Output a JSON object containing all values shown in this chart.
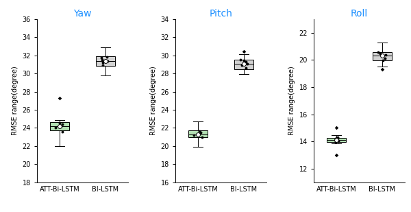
{
  "panels": [
    {
      "title": "Yaw",
      "ylim": [
        18,
        36
      ],
      "yticks": [
        18,
        20,
        22,
        24,
        26,
        28,
        30,
        32,
        34,
        36
      ],
      "att_bilstm": {
        "whislo": 22.0,
        "q1": 23.7,
        "med": 24.2,
        "q3": 24.65,
        "whishi": 24.9,
        "fliers": [
          27.3
        ],
        "scatter_pts": [
          23.6,
          24.0,
          24.2,
          24.4,
          24.55
        ],
        "mean": 24.2,
        "color": "#b2dfb2"
      },
      "bilstm": {
        "whislo": 29.8,
        "q1": 30.85,
        "med": 31.35,
        "q3": 31.9,
        "whishi": 32.9,
        "fliers": [],
        "scatter_pts": [
          30.9,
          31.2,
          31.35,
          31.5,
          31.75,
          31.85
        ],
        "mean": 31.4,
        "color": "#d3d3d3"
      }
    },
    {
      "title": "Pitch",
      "ylim": [
        16,
        34
      ],
      "yticks": [
        16,
        18,
        20,
        22,
        24,
        26,
        28,
        30,
        32,
        34
      ],
      "att_bilstm": {
        "whislo": 19.9,
        "q1": 21.0,
        "med": 21.3,
        "q3": 21.7,
        "whishi": 22.7,
        "fliers": [],
        "scatter_pts": [
          21.0,
          21.2,
          21.3,
          21.5,
          21.65
        ],
        "mean": 21.3,
        "color": "#b2dfb2"
      },
      "bilstm": {
        "whislo": 27.9,
        "q1": 28.5,
        "med": 29.1,
        "q3": 29.5,
        "whishi": 30.1,
        "fliers": [
          30.4
        ],
        "scatter_pts": [
          28.6,
          28.9,
          29.1,
          29.3,
          29.45,
          29.5
        ],
        "mean": 29.1,
        "color": "#d3d3d3"
      }
    },
    {
      "title": "Roll",
      "ylim": [
        11,
        23
      ],
      "yticks": [
        12,
        14,
        16,
        18,
        20,
        22
      ],
      "att_bilstm": {
        "whislo": 13.85,
        "q1": 13.95,
        "med": 14.1,
        "q3": 14.25,
        "whishi": 14.45,
        "fliers": [
          15.0,
          13.0
        ],
        "scatter_pts": [
          13.95,
          14.0,
          14.1,
          14.15,
          14.2,
          14.25,
          14.3
        ],
        "mean": 14.1,
        "color": "#b2dfb2"
      },
      "bilstm": {
        "whislo": 19.5,
        "q1": 19.95,
        "med": 20.3,
        "q3": 20.55,
        "whishi": 21.3,
        "fliers": [
          19.3
        ],
        "scatter_pts": [
          19.95,
          20.1,
          20.25,
          20.35,
          20.45,
          20.55
        ],
        "mean": 20.3,
        "color": "#d3d3d3"
      }
    }
  ],
  "xticklabels": [
    "ATT-Bi-LSTM",
    "BI-LSTM"
  ],
  "title_color": "#1e90ff",
  "ylabel": "RMSE range(degree)",
  "box_width": 0.42,
  "scatter_color": "black",
  "scatter_size": 8,
  "mean_marker": "o",
  "mean_color": "white",
  "mean_edgecolor": "black",
  "mean_size": 18,
  "flier_size": 8
}
